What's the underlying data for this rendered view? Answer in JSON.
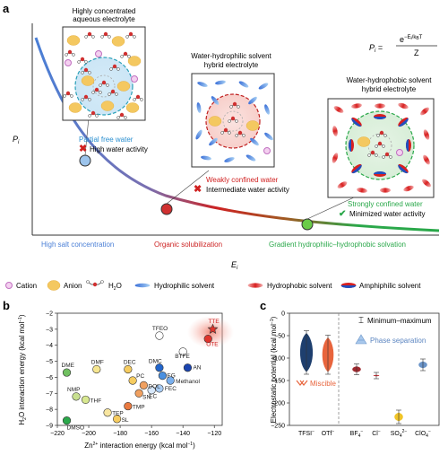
{
  "panel_a": {
    "label": "a",
    "formula": {
      "lhs": "P",
      "lhs_sub": "i",
      "num": "e",
      "num_sup": "−E",
      "num_sup_sub": "i",
      "num_sup_rest": "/k",
      "num_sup_sub2": "B",
      "num_sup_T": "T",
      "den": "Z"
    },
    "y_axis": "P",
    "y_axis_sub": "i",
    "x_axis": "E",
    "x_axis_sub": "i",
    "box1_title_line1": "Highly concentrated",
    "box1_title_line2": "aqueous electrolyte",
    "box2_title_line1": "Water-hydrophilic solvent",
    "box2_title_line2": "hybrid electrolyte",
    "box3_title_line1": "Water-hydrophobic solvent",
    "box3_title_line2": "hybrid electrolyte",
    "state1_label": "Partial free water",
    "state1_activity": "High water activity",
    "state2_label": "Weakly confined water",
    "state2_activity": "Intermediate water activity",
    "state3_label": "Strongly confined water",
    "state3_activity": "Minimized water activity",
    "region1": "High salt concentration",
    "region2": "Organic solubilization",
    "region3": "Gradient hydrophilic–hydrophobic solvation",
    "colors": {
      "region1": "#4a7fd6",
      "region2": "#cc2222",
      "region3": "#2aa84a"
    }
  },
  "legend": {
    "cation": "Cation",
    "anion": "Anion",
    "h2o": "H",
    "h2o_sub": "2",
    "h2o_rest": "O",
    "hydrophilic": "Hydrophilic solvent",
    "hydrophobic": "Hydrophobic solvent",
    "amphiphilic": "Amphiphilic solvent"
  },
  "panel_b": {
    "label": "b",
    "xlabel": "Zn",
    "xlabel_sup": "2+",
    "xlabel_rest": " interaction energy (kcal mol",
    "xlabel_sup2": "−1",
    "xlabel_end": ")",
    "ylabel": "H",
    "ylabel_sub": "2",
    "ylabel_rest": "O interaction energy (kcal mol",
    "ylabel_sup": "−1",
    "ylabel_end": ")"
  },
  "panel_c": {
    "label": "c",
    "ylabel": "Electrostatic potential (kcal mol",
    "ylabel_sup": "−1",
    "ylabel_end": ")",
    "legend_minmax": "Minimum–maximum",
    "legend_phase": "Phase separation",
    "miscible": "Miscible"
  },
  "chart_data": [
    {
      "type": "scatter",
      "xlim": [
        -220,
        -115
      ],
      "ylim": [
        -9,
        -2
      ],
      "xticks": [
        -220,
        -200,
        -180,
        -160,
        -140,
        -120
      ],
      "yticks": [
        -9,
        -8,
        -7,
        -6,
        -5,
        -4,
        -3,
        -2
      ],
      "points": [
        {
          "name": "TTE",
          "x": -121,
          "y": -3.0,
          "color": "#e0342c"
        },
        {
          "name": "OTE",
          "x": -124,
          "y": -3.6,
          "color": "#e0342c"
        },
        {
          "name": "TFEO",
          "x": -155,
          "y": -3.4,
          "color": "#ffffff"
        },
        {
          "name": "BTFE",
          "x": -140,
          "y": -4.4,
          "color": "#ffffff"
        },
        {
          "name": "AN",
          "x": -137,
          "y": -5.4,
          "color": "#1a44b0"
        },
        {
          "name": "DMC",
          "x": -155,
          "y": -5.4,
          "color": "#2266cc"
        },
        {
          "name": "EG",
          "x": -153,
          "y": -5.9,
          "color": "#4a90e0"
        },
        {
          "name": "Methanol",
          "x": -148,
          "y": -6.2,
          "color": "#7ab0ee"
        },
        {
          "name": "FEC",
          "x": -155,
          "y": -6.7,
          "color": "#a8ccf4"
        },
        {
          "name": "EC",
          "x": -160,
          "y": -6.8,
          "color": "#d8e8fa"
        },
        {
          "name": "DOL",
          "x": -165,
          "y": -6.5,
          "color": "#f0a060"
        },
        {
          "name": "PC",
          "x": -172,
          "y": -6.2,
          "color": "#f6cc60"
        },
        {
          "name": "DEC",
          "x": -175,
          "y": -5.5,
          "color": "#f6cc60"
        },
        {
          "name": "SN",
          "x": -168,
          "y": -7.0,
          "color": "#f0a060"
        },
        {
          "name": "TMP",
          "x": -175,
          "y": -7.8,
          "color": "#ea7a40"
        },
        {
          "name": "SL",
          "x": -182,
          "y": -8.6,
          "color": "#f6cc60"
        },
        {
          "name": "TEP",
          "x": -188,
          "y": -8.2,
          "color": "#f8e6a0"
        },
        {
          "name": "DMF",
          "x": -195,
          "y": -5.5,
          "color": "#f6e690"
        },
        {
          "name": "THF",
          "x": -202,
          "y": -7.4,
          "color": "#d8e890"
        },
        {
          "name": "NMP",
          "x": -208,
          "y": -7.2,
          "color": "#c8e090"
        },
        {
          "name": "DMSO",
          "x": -214,
          "y": -8.7,
          "color": "#2aa84a"
        },
        {
          "name": "DME",
          "x": -214,
          "y": -5.7,
          "color": "#70c060"
        }
      ]
    },
    {
      "type": "violin",
      "ylim": [
        -250,
        0
      ],
      "yticks": [
        -250,
        -200,
        -150,
        -100,
        -50,
        0
      ],
      "categories": [
        "TFSI",
        "OTf",
        "BF",
        "Cl",
        "SO",
        "ClO"
      ],
      "category_sup": [
        "−",
        "−",
        "4",
        "−",
        "4",
        "4"
      ],
      "category_sup2": [
        "",
        "",
        "−",
        "",
        "2−",
        "−"
      ],
      "ranges": [
        {
          "name": "TFSI−",
          "min": -130,
          "max": -45,
          "color": "#1e3f6e"
        },
        {
          "name": "OTf−",
          "min": -130,
          "max": -55,
          "color": "#e8643c"
        },
        {
          "name": "BF4−",
          "min": -131,
          "max": -119,
          "color": "#a02a30"
        },
        {
          "name": "Cl−",
          "min": -140,
          "max": -138,
          "color": "#c0282e"
        },
        {
          "name": "SO42−",
          "min": -240,
          "max": -222,
          "color": "#f0c428"
        },
        {
          "name": "ClO4−",
          "min": -122,
          "max": -108,
          "color": "#6a94c8"
        }
      ]
    }
  ]
}
